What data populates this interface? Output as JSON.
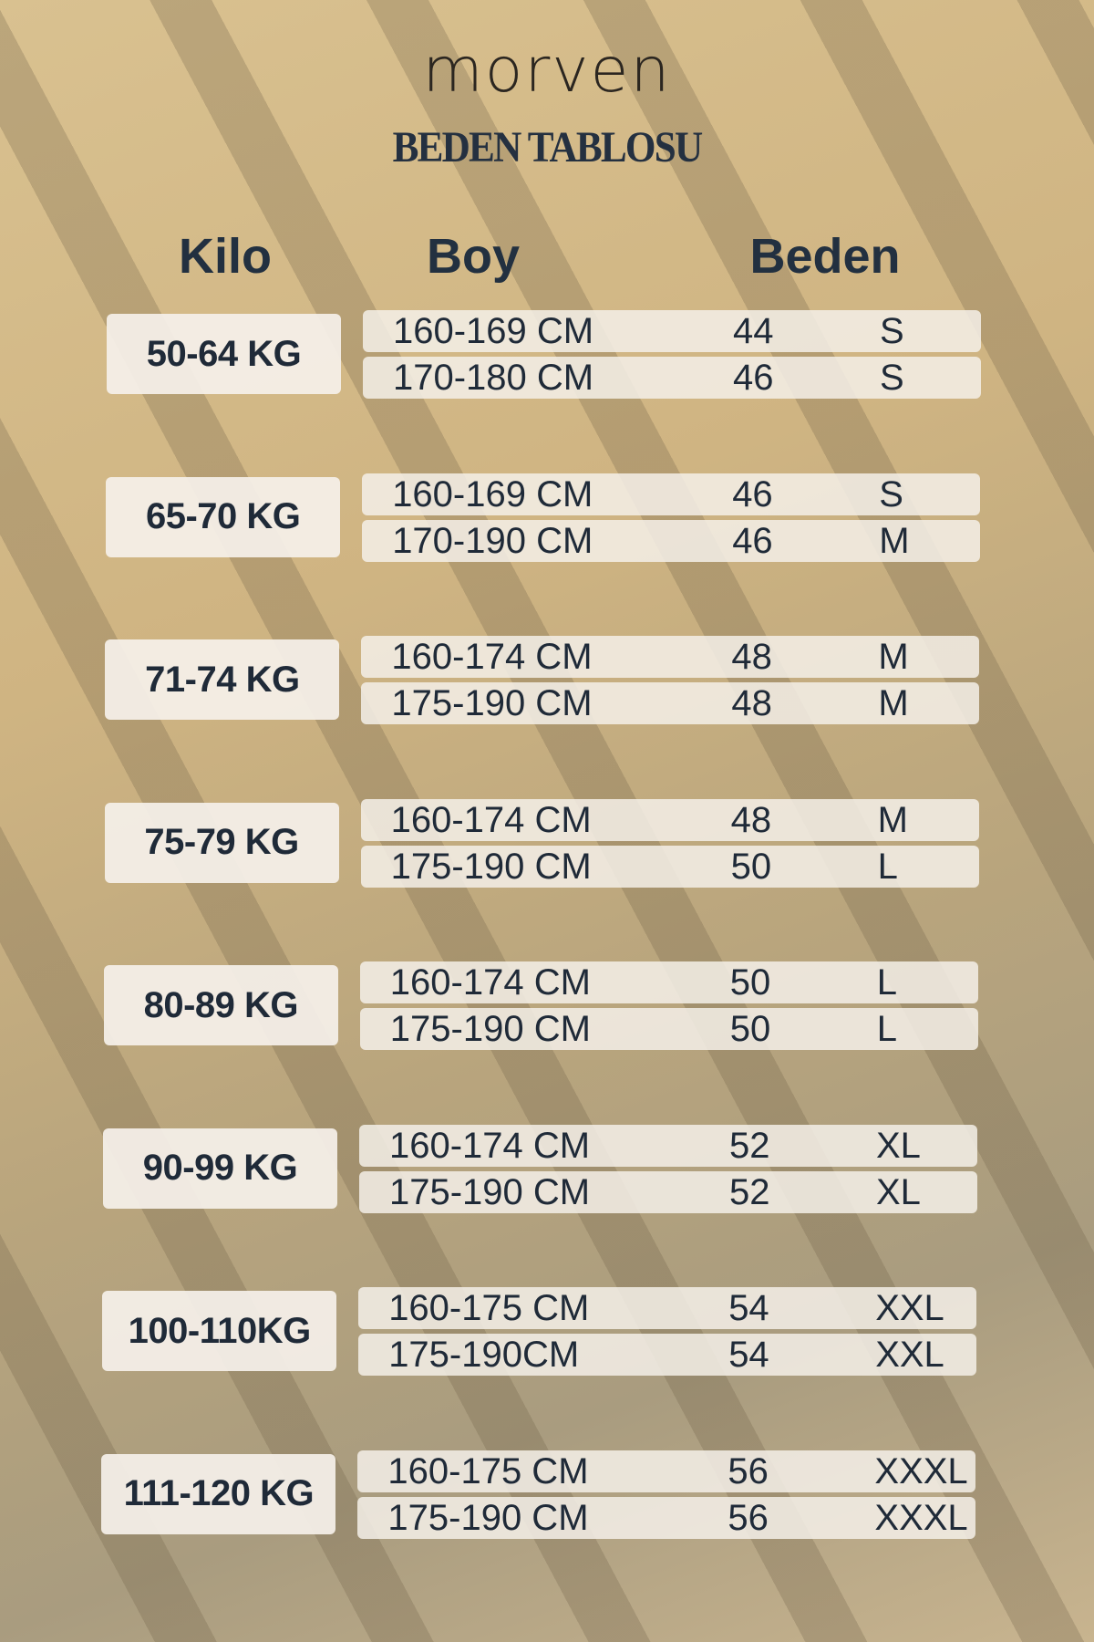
{
  "brand": "morven",
  "title": "BEDEN TABLOSU",
  "headers": {
    "kilo": "Kilo",
    "boy": "Boy",
    "beden": "Beden"
  },
  "groups": [
    {
      "kilo": "50-64 KG",
      "rows": [
        [
          "160-169 CM",
          "44",
          "S"
        ],
        [
          "170-180 CM",
          "46",
          "S"
        ]
      ]
    },
    {
      "kilo": "65-70 KG",
      "rows": [
        [
          "160-169 CM",
          "46",
          "S"
        ],
        [
          "170-190 CM",
          "46",
          "M"
        ]
      ]
    },
    {
      "kilo": "71-74 KG",
      "rows": [
        [
          "160-174 CM",
          "48",
          "M"
        ],
        [
          "175-190 CM",
          "48",
          "M"
        ]
      ]
    },
    {
      "kilo": "75-79 KG",
      "rows": [
        [
          "160-174 CM",
          "48",
          "M"
        ],
        [
          "175-190 CM",
          "50",
          "L"
        ]
      ]
    },
    {
      "kilo": "80-89 KG",
      "rows": [
        [
          "160-174 CM",
          "50",
          "L"
        ],
        [
          "175-190 CM",
          "50",
          "L"
        ]
      ]
    },
    {
      "kilo": "90-99 KG",
      "rows": [
        [
          "160-174 CM",
          "52",
          "XL"
        ],
        [
          "175-190 CM",
          "52",
          "XL"
        ]
      ]
    },
    {
      "kilo": "100-110KG",
      "rows": [
        [
          "160-175 CM",
          "54",
          "XXL"
        ],
        [
          "175-190CM",
          "54",
          "XXL"
        ]
      ]
    },
    {
      "kilo": "111-120 KG",
      "rows": [
        [
          "160-175 CM",
          "56",
          "XXXL"
        ],
        [
          "175-190 CM",
          "56",
          "XXXL"
        ]
      ]
    }
  ]
}
